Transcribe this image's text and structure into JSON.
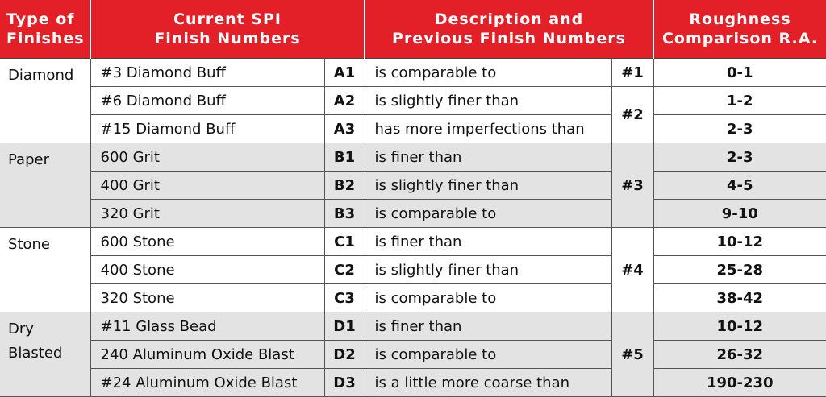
{
  "header": {
    "type_line1": "Type of",
    "type_line2": "Finishes",
    "spi_line1": "Current SPI",
    "spi_line2": "Finish Numbers",
    "desc_line1": "Description and",
    "desc_line2": "Previous Finish Numbers",
    "rough_line1": "Roughness",
    "rough_line2": "Comparison R.A."
  },
  "groups": [
    {
      "type_lines": [
        "Diamond"
      ],
      "rows": [
        {
          "finish": "#3 Diamond Buff",
          "code": "A1",
          "desc": "is comparable to",
          "prev": "#1",
          "ra": "0-1"
        },
        {
          "finish": "#6 Diamond Buff",
          "code": "A2",
          "desc": "is slightly finer than",
          "prev": "#2",
          "ra": "1-2"
        },
        {
          "finish": "#15 Diamond Buff",
          "code": "A3",
          "desc": "has more imperfections than",
          "ra": "2-3"
        }
      ]
    },
    {
      "type_lines": [
        "Paper"
      ],
      "rows": [
        {
          "finish": "600 Grit",
          "code": "B1",
          "desc": "is finer than",
          "prev": "#3",
          "ra": "2-3"
        },
        {
          "finish": "400 Grit",
          "code": "B2",
          "desc": "is slightly finer than",
          "ra": "4-5"
        },
        {
          "finish": "320 Grit",
          "code": "B3",
          "desc": "is comparable to",
          "ra": "9-10"
        }
      ]
    },
    {
      "type_lines": [
        "Stone"
      ],
      "rows": [
        {
          "finish": "600 Stone",
          "code": "C1",
          "desc": "is finer than",
          "prev": "#4",
          "ra": "10-12"
        },
        {
          "finish": "400 Stone",
          "code": "C2",
          "desc": "is slightly finer than",
          "ra": "25-28"
        },
        {
          "finish": "320 Stone",
          "code": "C3",
          "desc": "is comparable to",
          "ra": "38-42"
        }
      ]
    },
    {
      "type_lines": [
        "Dry",
        "Blasted"
      ],
      "rows": [
        {
          "finish": "#11 Glass Bead",
          "code": "D1",
          "desc": "is finer than",
          "prev": "#5",
          "ra": "10-12"
        },
        {
          "finish": "240 Aluminum Oxide Blast",
          "code": "D2",
          "desc": "is comparable to",
          "ra": "26-32"
        },
        {
          "finish": "#24 Aluminum Oxide Blast",
          "code": "D3",
          "desc": "is a little more coarse than",
          "ra": "190-230"
        }
      ]
    }
  ],
  "colors": {
    "header_bg": "#e32028",
    "header_text": "#ffffff",
    "shade_bg": "#e3e3e3"
  }
}
